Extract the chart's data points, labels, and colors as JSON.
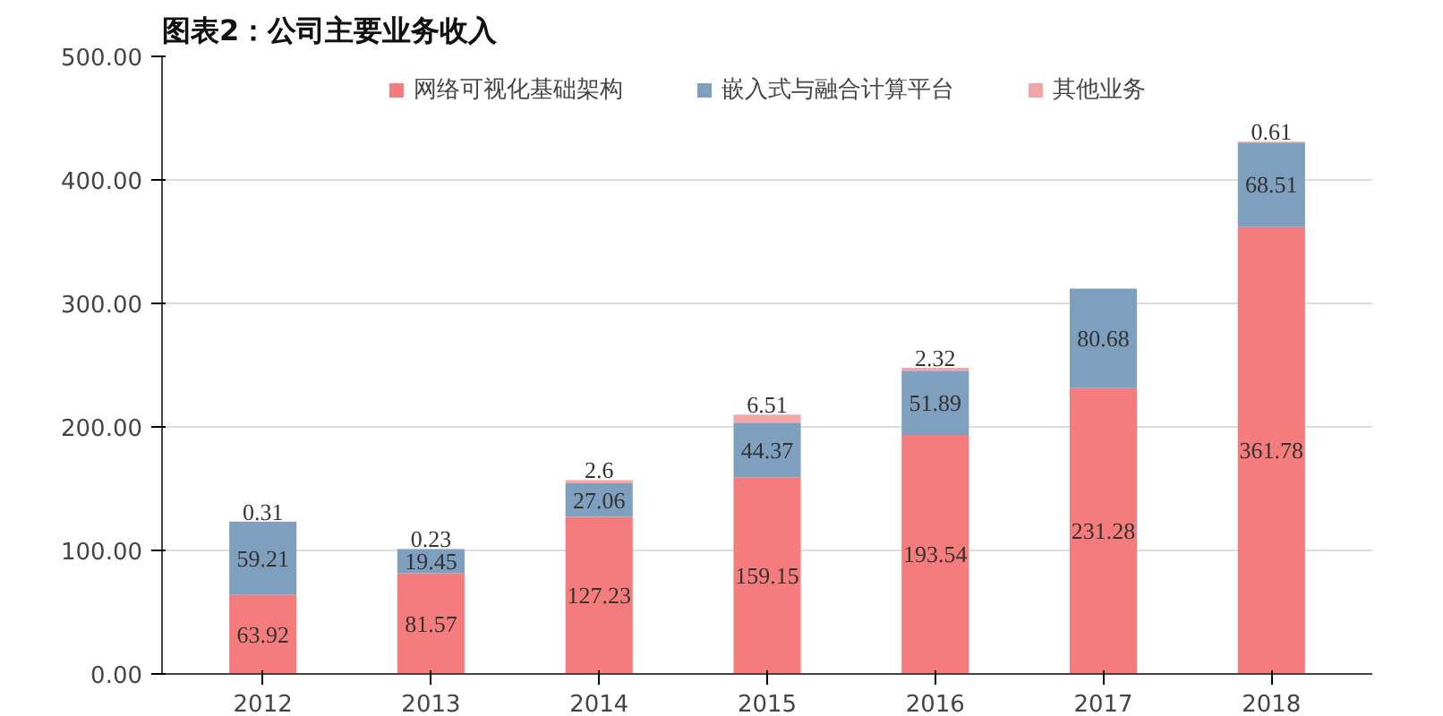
{
  "chart_data": {
    "type": "bar",
    "title": "图表2：公司主要业务收入",
    "stacked": true,
    "categories": [
      "2012",
      "2013",
      "2014",
      "2015",
      "2016",
      "2017",
      "2018"
    ],
    "series": [
      {
        "name": "网络可视化基础架构",
        "color": "#f47c7c",
        "values": [
          63.92,
          81.57,
          127.23,
          159.15,
          193.54,
          231.28,
          361.78
        ]
      },
      {
        "name": "嵌入式与融合计算平台",
        "color": "#7f9fbf",
        "values": [
          59.21,
          19.45,
          27.06,
          44.37,
          51.89,
          80.68,
          68.51
        ]
      },
      {
        "name": "其他业务",
        "color": "#f4a6a6",
        "values": [
          0.31,
          0.23,
          2.6,
          6.51,
          2.32,
          null,
          0.61
        ]
      }
    ],
    "ylim": [
      0,
      500
    ],
    "yticks": [
      {
        "value": 0,
        "label": "0.00"
      },
      {
        "value": 100,
        "label": "100.00"
      },
      {
        "value": 200,
        "label": "200.00"
      },
      {
        "value": 300,
        "label": "300.00"
      },
      {
        "value": 400,
        "label": "400.00"
      },
      {
        "value": 500,
        "label": "500.00"
      }
    ],
    "grid": "y",
    "legend": "top",
    "data_labels": true
  }
}
